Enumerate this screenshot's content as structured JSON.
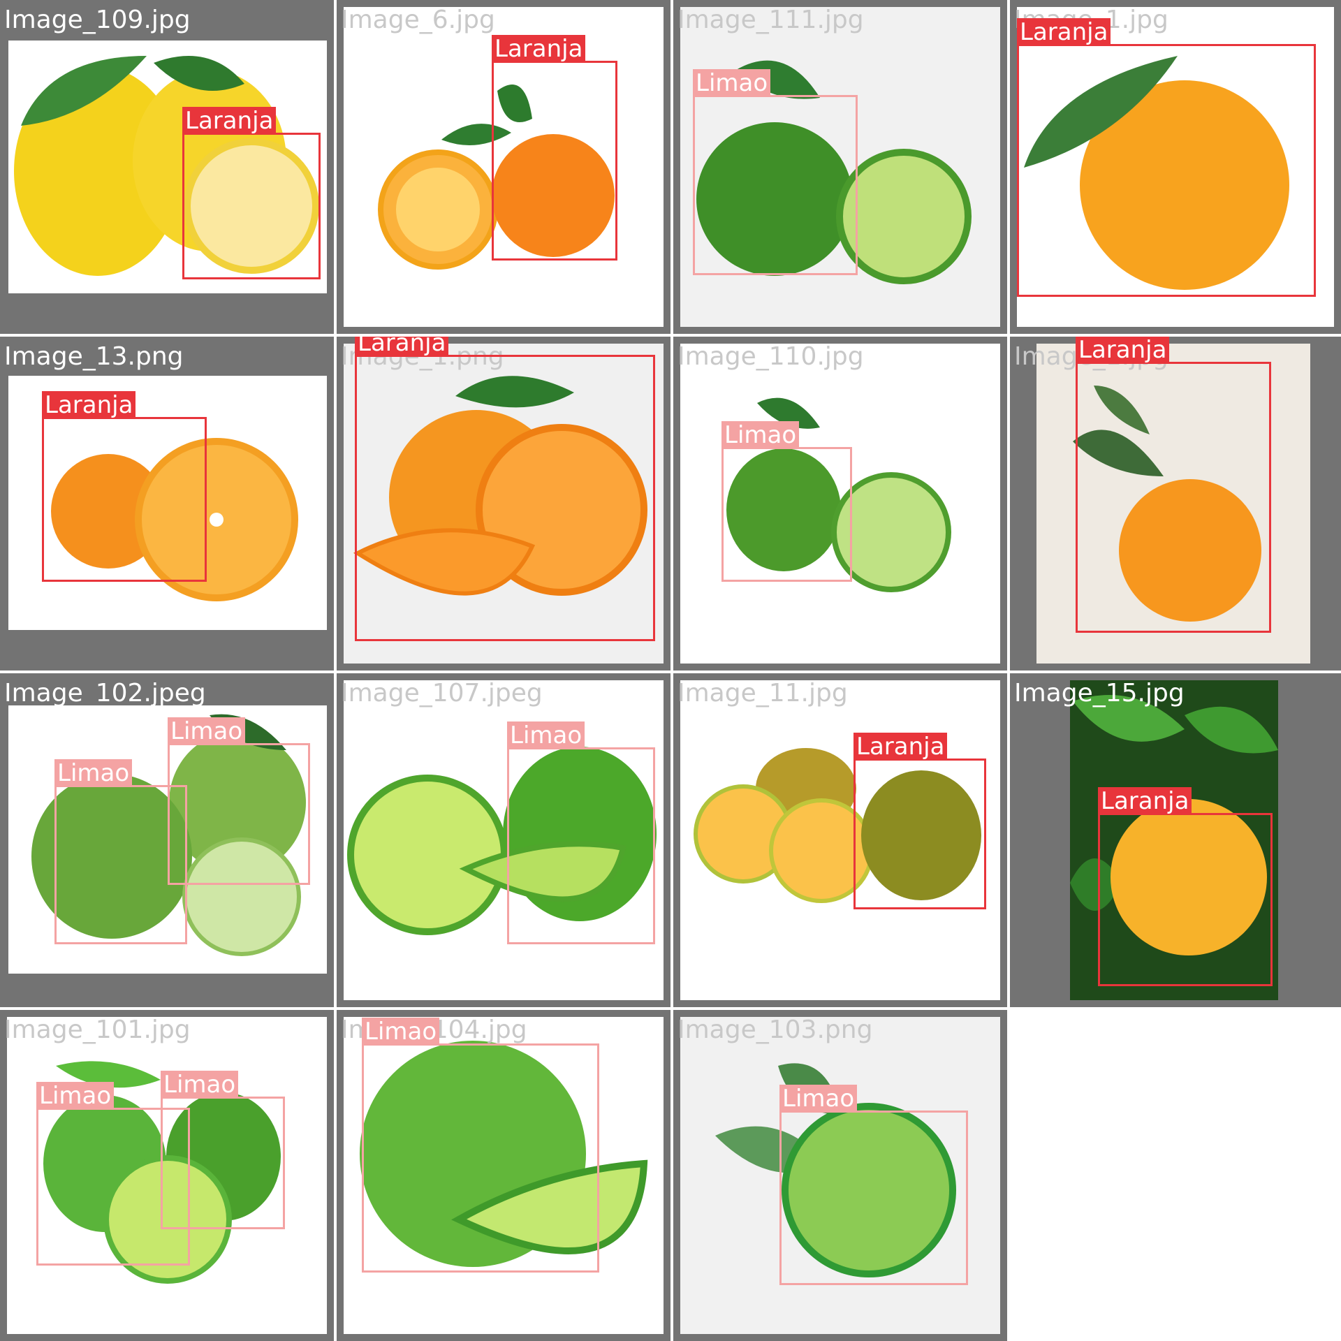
{
  "grid": {
    "tiles": [
      {
        "filename": "Image_109.jpg",
        "detections": [
          {
            "label": "Laranja"
          }
        ]
      },
      {
        "filename": "Image_6.jpg",
        "detections": [
          {
            "label": "Laranja"
          }
        ]
      },
      {
        "filename": "Image_111.jpg",
        "detections": [
          {
            "label": "Limao"
          }
        ]
      },
      {
        "filename": "Image_1.jpg",
        "detections": [
          {
            "label": "Laranja"
          }
        ]
      },
      {
        "filename": "Image_13.png",
        "detections": [
          {
            "label": "Laranja"
          }
        ]
      },
      {
        "filename": "Image_1.png",
        "detections": [
          {
            "label": "Laranja"
          }
        ]
      },
      {
        "filename": "Image_110.jpg",
        "detections": [
          {
            "label": "Limao"
          }
        ]
      },
      {
        "filename": "Image_1.jpg",
        "detections": [
          {
            "label": "Laranja"
          }
        ]
      },
      {
        "filename": "Image_102.jpeg",
        "detections": [
          {
            "label": "Limao"
          },
          {
            "label": "Limao"
          }
        ]
      },
      {
        "filename": "Image_107.jpeg",
        "detections": [
          {
            "label": "Limao"
          }
        ]
      },
      {
        "filename": "Image_11.jpg",
        "detections": [
          {
            "label": "Laranja"
          }
        ]
      },
      {
        "filename": "Image_15.jpg",
        "detections": [
          {
            "label": "Laranja"
          }
        ]
      },
      {
        "filename": "Image_101.jpg",
        "detections": [
          {
            "label": "Limao"
          },
          {
            "label": "Limao"
          }
        ]
      },
      {
        "filename": "Image_104.jpg",
        "detections": [
          {
            "label": "Limao"
          }
        ]
      },
      {
        "filename": "Image_103.png",
        "detections": [
          {
            "label": "Limao"
          }
        ]
      }
    ]
  },
  "colors": {
    "laranja_box": "#e8353b",
    "limao_box": "#f4a3a3",
    "tile_frame": "#737373"
  }
}
